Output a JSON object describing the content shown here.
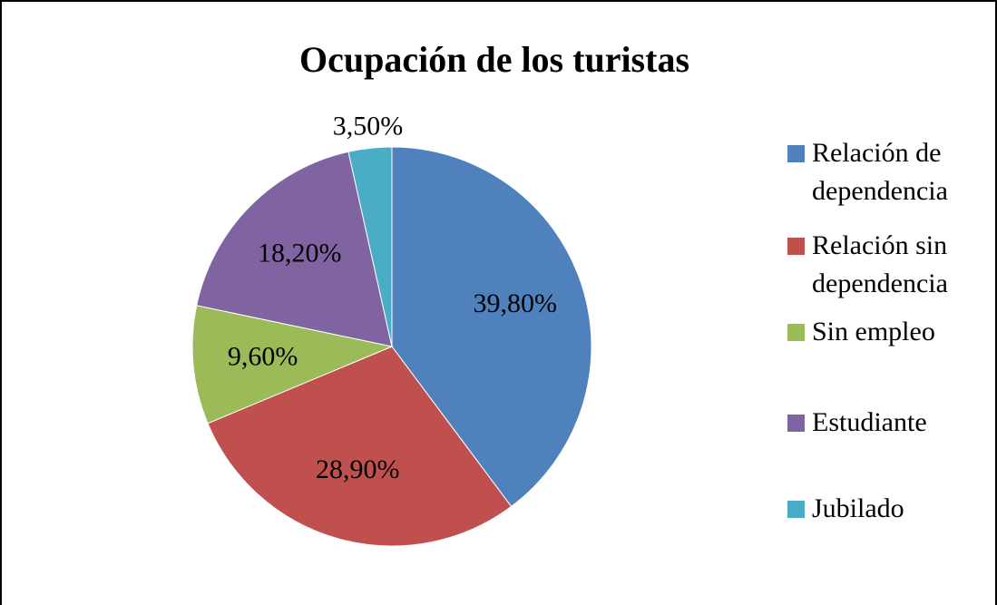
{
  "chart_data": {
    "type": "pie",
    "title": "Ocupación  de los turistas",
    "categories": [
      "Relación de dependencia",
      "Relación sin dependencia",
      "Sin empleo",
      "Estudiante",
      "Jubilado"
    ],
    "values": [
      39.8,
      28.9,
      9.6,
      18.2,
      3.5
    ],
    "value_labels": [
      "39,80%",
      "28,90%",
      "9,60%",
      "18,20%",
      "3,50%"
    ],
    "colors": [
      "#4f81bd",
      "#c0504d",
      "#9bbb59",
      "#8064a2",
      "#4bacc6"
    ],
    "legend": "right"
  }
}
